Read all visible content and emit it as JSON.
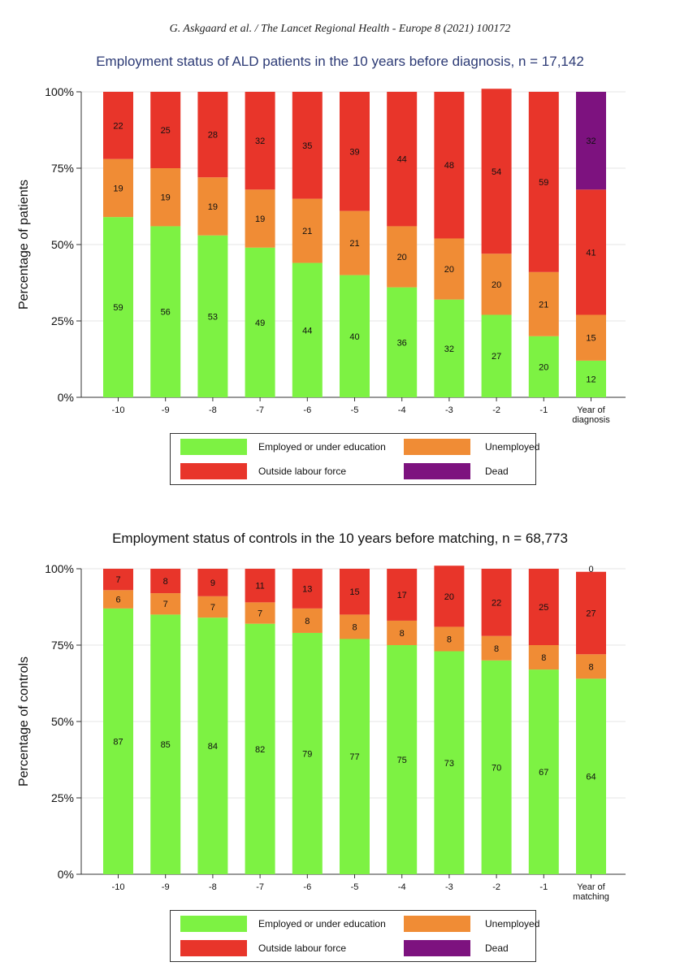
{
  "page_header": "G. Askgaard et al. / The Lancet Regional Health - Europe 8 (2021) 100172",
  "colors": {
    "employed": "#7df243",
    "unemployed": "#f08c35",
    "outside": "#e8352a",
    "dead": "#7d127f"
  },
  "chart_data": [
    {
      "type": "bar",
      "stacked": true,
      "title": "Employment status of ALD patients in the 10 years before diagnosis, n = 17,142",
      "ylabel": "Percentage of patients",
      "xlabel": "",
      "ylim": [
        0,
        100
      ],
      "yticks": [
        "0%",
        "25%",
        "50%",
        "75%",
        "100%"
      ],
      "categories": [
        "-10",
        "-9",
        "-8",
        "-7",
        "-6",
        "-5",
        "-4",
        "-3",
        "-2",
        "-1",
        "Year of diagnosis"
      ],
      "series": [
        {
          "name": "Employed or under education",
          "values": [
            59,
            56,
            53,
            49,
            44,
            40,
            36,
            32,
            27,
            20,
            12
          ]
        },
        {
          "name": "Unemployed",
          "values": [
            19,
            19,
            19,
            19,
            21,
            21,
            20,
            20,
            20,
            21,
            15
          ]
        },
        {
          "name": "Outside labour force",
          "values": [
            22,
            25,
            28,
            32,
            35,
            39,
            44,
            48,
            54,
            59,
            41
          ]
        },
        {
          "name": "Dead",
          "values": [
            0,
            0,
            0,
            0,
            0,
            0,
            0,
            0,
            0,
            0,
            32
          ]
        }
      ],
      "legend": [
        "Employed or under education",
        "Unemployed",
        "Outside labour force",
        "Dead"
      ],
      "legend_position": "bottom"
    },
    {
      "type": "bar",
      "stacked": true,
      "title": "Employment status of controls in the 10 years before matching, n =  68,773",
      "ylabel": "Percentage of controls",
      "xlabel": "",
      "ylim": [
        0,
        100
      ],
      "yticks": [
        "0%",
        "25%",
        "50%",
        "75%",
        "100%"
      ],
      "categories": [
        "-10",
        "-9",
        "-8",
        "-7",
        "-6",
        "-5",
        "-4",
        "-3",
        "-2",
        "-1",
        "Year of matching"
      ],
      "series": [
        {
          "name": "Employed or under education",
          "values": [
            87,
            85,
            84,
            82,
            79,
            77,
            75,
            73,
            70,
            67,
            64
          ]
        },
        {
          "name": "Unemployed",
          "values": [
            6,
            7,
            7,
            7,
            8,
            8,
            8,
            8,
            8,
            8,
            8
          ]
        },
        {
          "name": "Outside labour force",
          "values": [
            7,
            8,
            9,
            11,
            13,
            15,
            17,
            20,
            22,
            25,
            27
          ]
        },
        {
          "name": "Dead",
          "values": [
            0,
            0,
            0,
            0,
            0,
            0,
            0,
            0,
            0,
            0,
            0
          ]
        }
      ],
      "legend": [
        "Employed or under education",
        "Unemployed",
        "Outside labour force",
        "Dead"
      ],
      "legend_position": "bottom"
    }
  ]
}
